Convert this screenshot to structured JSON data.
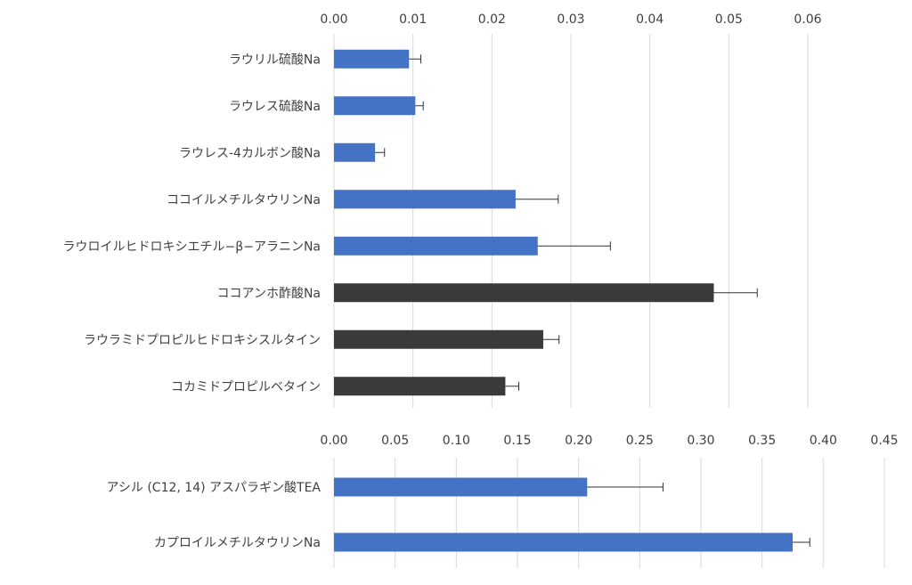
{
  "colors": {
    "blue": "#4472C4",
    "dark": "#3A3A3A",
    "grid": "#D9D9D9",
    "text": "#404040"
  },
  "chart_data": [
    {
      "type": "bar",
      "orientation": "horizontal",
      "x_ticks": [
        "0.00",
        "0.01",
        "0.02",
        "0.03",
        "0.04",
        "0.05",
        "0.06"
      ],
      "xlim": [
        0,
        0.06
      ],
      "grid": true,
      "categories": [
        "ラウリル硫酸Na",
        "ラウレス硫酸Na",
        "ラウレス-4カルボン酸Na",
        "ココイルメチルタウリンNa",
        "ラウロイルヒドロキシエチル−β−アラニンNa",
        "ココアンホ酢酸Na",
        "ラウラミドプロピルヒドロキシスルタイン",
        "コカミドプロピルベタイン"
      ],
      "values": [
        0.0095,
        0.0103,
        0.0052,
        0.023,
        0.0258,
        0.0481,
        0.0265,
        0.0217
      ],
      "errors": [
        0.0015,
        0.001,
        0.0012,
        0.0054,
        0.0092,
        0.0055,
        0.002,
        0.0017
      ],
      "bar_colors": [
        "#4472C4",
        "#4472C4",
        "#4472C4",
        "#4472C4",
        "#4472C4",
        "#3A3A3A",
        "#3A3A3A",
        "#3A3A3A"
      ]
    },
    {
      "type": "bar",
      "orientation": "horizontal",
      "x_ticks": [
        "0.00",
        "0.05",
        "0.10",
        "0.15",
        "0.20",
        "0.25",
        "0.30",
        "0.35",
        "0.40",
        "0.45"
      ],
      "xlim": [
        0,
        0.45
      ],
      "grid": true,
      "categories": [
        "アシル (C12, 14) アスパラギン酸TEA",
        "カプロイルメチルタウリンNa"
      ],
      "values": [
        0.207,
        0.375
      ],
      "errors": [
        0.062,
        0.014
      ],
      "bar_colors": [
        "#4472C4",
        "#4472C4"
      ]
    }
  ]
}
